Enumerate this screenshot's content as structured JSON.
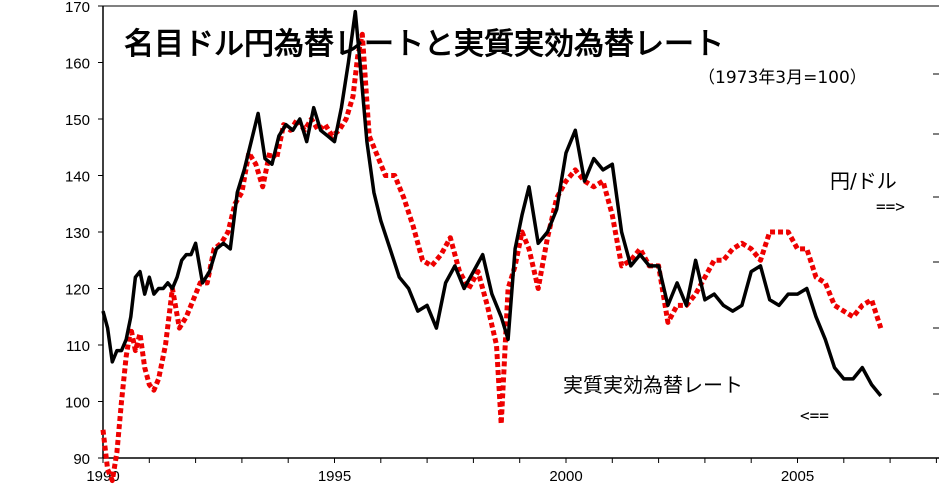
{
  "chart_data": {
    "type": "line",
    "title": "名目ドル円為替レートと実質実効為替レート",
    "subtitle": "（1973年3月=100）",
    "xlim": [
      1990,
      2009
    ],
    "ylim": [
      90,
      170
    ],
    "x_ticks": [
      1990,
      1995,
      2000,
      2005
    ],
    "x_tick_labels": [
      "1990",
      "1995",
      "2000",
      "2005"
    ],
    "y_ticks": [
      90,
      100,
      110,
      120,
      130,
      140,
      150,
      160,
      170
    ],
    "y_tick_labels": [
      "90",
      "100",
      "110",
      "120",
      "130",
      "140",
      "150",
      "160",
      "170"
    ],
    "grid": false,
    "series": [
      {
        "name": "実質実効為替レート",
        "color": "#000000",
        "style": "solid",
        "axis": "left",
        "label_text": "実質実効為替レート",
        "arrow_text": "<==",
        "x": [
          1990.0,
          1990.1,
          1990.2,
          1990.3,
          1990.4,
          1990.5,
          1990.6,
          1990.7,
          1990.8,
          1990.9,
          1991.0,
          1991.1,
          1991.2,
          1991.3,
          1991.4,
          1991.5,
          1991.6,
          1991.7,
          1991.8,
          1991.9,
          1992.0,
          1992.15,
          1992.3,
          1992.45,
          1992.6,
          1992.75,
          1992.9,
          1993.05,
          1993.2,
          1993.35,
          1993.5,
          1993.65,
          1993.8,
          1993.95,
          1994.1,
          1994.25,
          1994.4,
          1994.55,
          1994.7,
          1994.85,
          1995.0,
          1995.15,
          1995.3,
          1995.45,
          1995.55,
          1995.7,
          1995.85,
          1996.0,
          1996.2,
          1996.4,
          1996.6,
          1996.8,
          1997.0,
          1997.2,
          1997.4,
          1997.6,
          1997.8,
          1998.0,
          1998.2,
          1998.4,
          1998.6,
          1998.75,
          1998.9,
          1999.05,
          1999.2,
          1999.4,
          1999.6,
          1999.8,
          2000.0,
          2000.2,
          2000.4,
          2000.6,
          2000.8,
          2001.0,
          2001.2,
          2001.4,
          2001.6,
          2001.8,
          2002.0,
          2002.2,
          2002.4,
          2002.6,
          2002.8,
          2003.0,
          2003.2,
          2003.4,
          2003.6,
          2003.8,
          2004.0,
          2004.2,
          2004.4,
          2004.6,
          2004.8,
          2005.0,
          2005.2,
          2005.4,
          2005.6,
          2005.8,
          2006.0,
          2006.2,
          2006.4,
          2006.6,
          2006.8
        ],
        "y": [
          116,
          113,
          107,
          109,
          109,
          111,
          115,
          122,
          123,
          119,
          122,
          119,
          120,
          120,
          121,
          120,
          122,
          125,
          126,
          126,
          128,
          121,
          123,
          127,
          128,
          127,
          137,
          141,
          146,
          151,
          143,
          142,
          147,
          149,
          148,
          150,
          146,
          152,
          148,
          147,
          146,
          152,
          160,
          169,
          160,
          146,
          137,
          132,
          127,
          122,
          120,
          116,
          117,
          113,
          121,
          124,
          120,
          123,
          126,
          119,
          115,
          111,
          127,
          133,
          138,
          128,
          130,
          134,
          144,
          148,
          139,
          143,
          141,
          142,
          130,
          124,
          126,
          124,
          124,
          117,
          121,
          117,
          125,
          118,
          119,
          117,
          116,
          117,
          123,
          124,
          118,
          117,
          119,
          119,
          120,
          115,
          111,
          106,
          104,
          104,
          106,
          103,
          101
        ]
      },
      {
        "name": "円/ドル",
        "color": "#ee0000",
        "style": "dotted",
        "axis": "right",
        "label_text": "円/ドル",
        "arrow_text": "==>",
        "x": [
          1990.0,
          1990.1,
          1990.2,
          1990.3,
          1990.4,
          1990.5,
          1990.6,
          1990.7,
          1990.8,
          1990.9,
          1991.0,
          1991.1,
          1991.2,
          1991.35,
          1991.5,
          1991.65,
          1991.8,
          1991.95,
          1992.1,
          1992.25,
          1992.4,
          1992.55,
          1992.7,
          1992.85,
          1993.0,
          1993.15,
          1993.3,
          1993.45,
          1993.6,
          1993.75,
          1993.9,
          1994.05,
          1994.2,
          1994.35,
          1994.5,
          1994.65,
          1994.8,
          1994.95,
          1995.1,
          1995.25,
          1995.4,
          1995.5,
          1995.6,
          1995.75,
          1995.9,
          1996.1,
          1996.3,
          1996.5,
          1996.7,
          1996.9,
          1997.1,
          1997.3,
          1997.5,
          1997.7,
          1997.9,
          1998.1,
          1998.3,
          1998.5,
          1998.6,
          1998.75,
          1998.9,
          1999.05,
          1999.2,
          1999.4,
          1999.6,
          1999.8,
          2000.0,
          2000.2,
          2000.4,
          2000.6,
          2000.8,
          2001.0,
          2001.2,
          2001.4,
          2001.6,
          2001.8,
          2002.0,
          2002.2,
          2002.4,
          2002.6,
          2002.8,
          2003.0,
          2003.2,
          2003.4,
          2003.6,
          2003.8,
          2004.0,
          2004.2,
          2004.4,
          2004.6,
          2004.8,
          2005.0,
          2005.2,
          2005.4,
          2005.6,
          2005.8,
          2006.0,
          2006.2,
          2006.4,
          2006.6,
          2006.8
        ],
        "y": [
          95,
          88,
          86,
          91,
          100,
          108,
          113,
          109,
          112,
          106,
          103,
          102,
          104,
          110,
          120,
          113,
          115,
          118,
          121,
          121,
          127,
          128,
          130,
          135,
          137,
          144,
          142,
          138,
          144,
          143,
          149,
          148,
          150,
          148,
          150,
          148,
          149,
          147,
          148,
          150,
          154,
          161,
          165,
          147,
          144,
          140,
          140,
          136,
          131,
          125,
          124,
          126,
          129,
          123,
          120,
          123,
          117,
          110,
          96,
          120,
          124,
          130,
          127,
          120,
          129,
          136,
          139,
          141,
          139,
          138,
          139,
          133,
          124,
          125,
          127,
          124,
          124,
          114,
          117,
          117,
          119,
          122,
          125,
          125,
          127,
          128,
          127,
          125,
          130,
          130,
          130,
          127,
          127,
          122,
          121,
          117,
          116,
          115,
          117,
          118,
          113
        ]
      }
    ]
  }
}
